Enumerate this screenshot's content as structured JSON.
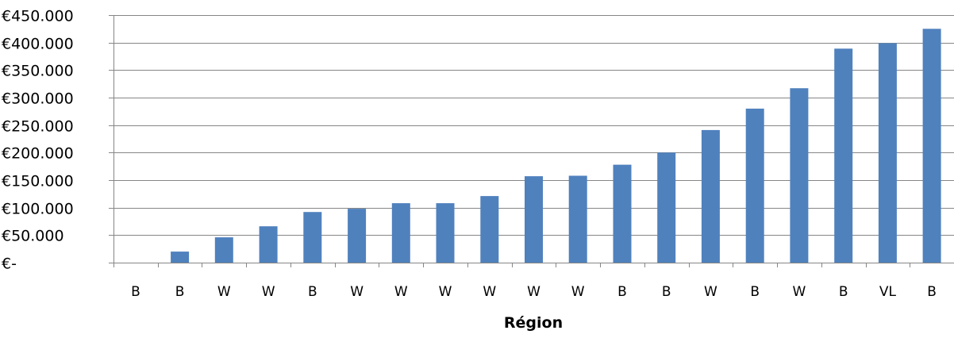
{
  "chart_data": {
    "type": "bar",
    "title": "",
    "xlabel": "Région",
    "ylabel": "",
    "ylim": [
      0,
      450000
    ],
    "ytick_values": [
      0,
      50000,
      100000,
      150000,
      200000,
      250000,
      300000,
      350000,
      400000,
      450000
    ],
    "ytick_labels": [
      "€-",
      "€50.000",
      "€100.000",
      "€150.000",
      "€200.000",
      "€250.000",
      "€300.000",
      "€350.000",
      "€400.000",
      "€450.000"
    ],
    "grid": true,
    "legend": "none",
    "bar_color": "#4f81bd",
    "categories": [
      "B",
      "B",
      "W",
      "W",
      "B",
      "W",
      "W",
      "W",
      "W",
      "W",
      "W",
      "B",
      "B",
      "W",
      "B",
      "W",
      "B",
      "VL",
      "B"
    ],
    "values": [
      0,
      20000,
      46000,
      66000,
      92000,
      98000,
      108000,
      108000,
      121000,
      157000,
      158000,
      178000,
      200000,
      241000,
      280000,
      317000,
      389000,
      399000,
      425000
    ]
  }
}
